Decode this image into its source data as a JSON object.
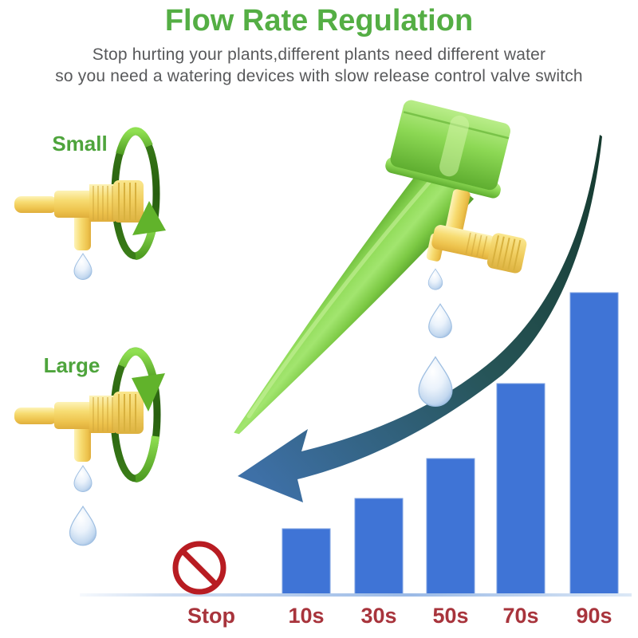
{
  "header": {
    "title": "Flow Rate Regulation",
    "subtitle_line1": "Stop hurting your plants,different plants need different water",
    "subtitle_line2": "so you need a watering devices with slow release control valve switch"
  },
  "valve_demo": {
    "small_label": "Small",
    "large_label": "Large"
  },
  "chart_data": {
    "type": "bar",
    "title": "",
    "xlabel": "",
    "ylabel": "",
    "stop_label": "Stop",
    "categories": [
      "10s",
      "30s",
      "50s",
      "70s",
      "90s"
    ],
    "values": [
      10,
      30,
      50,
      70,
      90
    ],
    "unit": "seconds between drips",
    "bar_relative_heights": [
      0.22,
      0.32,
      0.45,
      0.7,
      1.0
    ],
    "grid": false,
    "legend": "none",
    "bar_color": "#3f74d6",
    "label_color": "#a8343c"
  },
  "icons": {
    "prohibition": "no-drip-prohibition-icon",
    "rotate_small": "rotate-tighten-ring-arrow-icon",
    "rotate_large": "rotate-loosen-ring-arrow-icon",
    "flow_arrow": "curved-decrease-arrow-icon",
    "drop": "water-drop-icon"
  },
  "colors": {
    "title_green": "#54ae44",
    "label_green": "#4ea43c",
    "subtitle_gray": "#58595b",
    "bar_blue": "#3f74d6",
    "time_label_red": "#a8343c",
    "prohibition_red": "#b81c22",
    "arrow_dark": "#15392d",
    "arrow_blue": "#3e70a7",
    "spike_green": "#7cc944",
    "valve_yellow": "#f3d469"
  }
}
